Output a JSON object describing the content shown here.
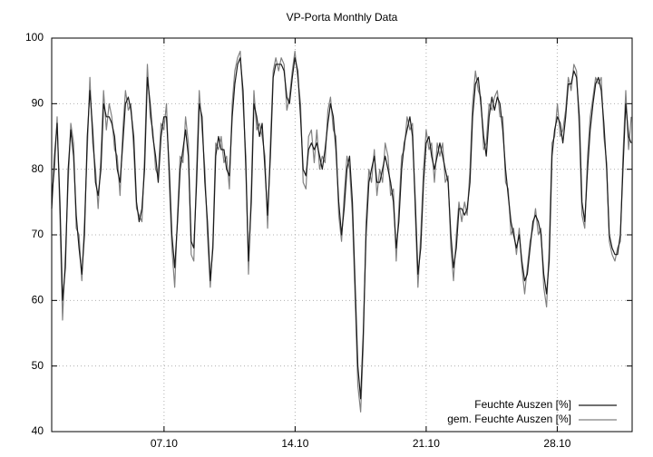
{
  "chart_data": {
    "type": "line",
    "title": "VP-Porta Monthly Data",
    "x": [
      1,
      1.15,
      1.29,
      1.44,
      1.58,
      1.73,
      1.88,
      2.02,
      2.17,
      2.31,
      2.46,
      2.61,
      2.75,
      2.9,
      3.04,
      3.19,
      3.34,
      3.48,
      3.63,
      3.77,
      3.92,
      4.07,
      4.21,
      4.36,
      4.5,
      4.65,
      4.8,
      4.94,
      5.09,
      5.23,
      5.38,
      5.53,
      5.67,
      5.82,
      5.96,
      6.11,
      6.26,
      6.4,
      6.55,
      6.69,
      6.84,
      6.99,
      7.13,
      7.28,
      7.42,
      7.57,
      7.72,
      7.86,
      8.01,
      8.15,
      8.3,
      8.45,
      8.59,
      8.74,
      8.88,
      9.03,
      9.18,
      9.32,
      9.47,
      9.61,
      9.76,
      9.91,
      10.05,
      10.2,
      10.34,
      10.49,
      10.64,
      10.78,
      10.93,
      11.07,
      11.22,
      11.37,
      11.51,
      11.66,
      11.8,
      11.95,
      12.1,
      12.24,
      12.39,
      12.53,
      12.68,
      12.83,
      12.97,
      13.12,
      13.26,
      13.41,
      13.56,
      13.7,
      13.85,
      13.99,
      14.14,
      14.29,
      14.43,
      14.58,
      14.72,
      14.87,
      15.02,
      15.16,
      15.31,
      15.45,
      15.6,
      15.75,
      15.89,
      16.04,
      16.18,
      16.33,
      16.48,
      16.62,
      16.77,
      16.91,
      17.06,
      17.21,
      17.35,
      17.5,
      17.64,
      17.79,
      17.94,
      18.08,
      18.23,
      18.37,
      18.52,
      18.67,
      18.81,
      18.96,
      19.1,
      19.25,
      19.4,
      19.54,
      19.69,
      19.83,
      19.98,
      20.13,
      20.27,
      20.42,
      20.56,
      20.71,
      20.86,
      21,
      21.15,
      21.29,
      21.44,
      21.59,
      21.73,
      21.88,
      22.02,
      22.17,
      22.32,
      22.46,
      22.61,
      22.75,
      22.9,
      23.05,
      23.19,
      23.34,
      23.48,
      23.63,
      23.78,
      23.92,
      24.07,
      24.21,
      24.36,
      24.51,
      24.65,
      24.8,
      24.94,
      25.09,
      25.24,
      25.38,
      25.53,
      25.67,
      25.82,
      25.97,
      26.11,
      26.26,
      26.4,
      26.55,
      26.7,
      26.84,
      26.99,
      27.13,
      27.28,
      27.43,
      27.57,
      27.72,
      27.86,
      28.01,
      28.16,
      28.3,
      28.45,
      28.59,
      28.74,
      28.89,
      29.03,
      29.18,
      29.32,
      29.47,
      29.62,
      29.76,
      29.91,
      30.05,
      30.2,
      30.35,
      30.49,
      30.64,
      30.78,
      30.93,
      31.08,
      31.22,
      31.37,
      31.51,
      31.66,
      31.81,
      31.95
    ],
    "series": [
      {
        "name": "gem. Feuchte Auszen [%]",
        "color": "#808080",
        "values": [
          76,
          80,
          88,
          73,
          57,
          67,
          78,
          87,
          84,
          71,
          70,
          63,
          72,
          83,
          94,
          84,
          80,
          74,
          82,
          92,
          86,
          90,
          88,
          83,
          82,
          76,
          86,
          92,
          89,
          90,
          83,
          74,
          73,
          72,
          82,
          96,
          88,
          86,
          80,
          79,
          87,
          86,
          90,
          78,
          68,
          62,
          73,
          82,
          81,
          88,
          84,
          67,
          66,
          80,
          92,
          86,
          80,
          70,
          62,
          69,
          84,
          83,
          85,
          81,
          82,
          77,
          90,
          95,
          97,
          98,
          90,
          82,
          64,
          77,
          92,
          86,
          87,
          85,
          82,
          71,
          84,
          95,
          97,
          95,
          97,
          96,
          89,
          91,
          95,
          98,
          94,
          90,
          78,
          77,
          85,
          86,
          81,
          86,
          80,
          82,
          81,
          89,
          91,
          86,
          85,
          73,
          69,
          76,
          82,
          80,
          73,
          60,
          47,
          43,
          53,
          72,
          80,
          78,
          83,
          76,
          80,
          78,
          84,
          82,
          76,
          77,
          66,
          74,
          82,
          83,
          88,
          86,
          87,
          73,
          62,
          70,
          80,
          86,
          83,
          84,
          78,
          84,
          82,
          84,
          78,
          79,
          68,
          63,
          70,
          75,
          72,
          75,
          73,
          80,
          90,
          95,
          92,
          91,
          83,
          84,
          90,
          89,
          91,
          92,
          88,
          88,
          78,
          77,
          70,
          71,
          67,
          71,
          65,
          61,
          65,
          69,
          71,
          74,
          70,
          71,
          62,
          59,
          68,
          84,
          85,
          90,
          85,
          86,
          89,
          94,
          92,
          96,
          95,
          86,
          73,
          71,
          82,
          88,
          91,
          94,
          93,
          94,
          85,
          81,
          69,
          67,
          66,
          68,
          69,
          82,
          92,
          83,
          88
        ]
      },
      {
        "name": "Feuchte Auszen [%]",
        "color": "#1a1a1a",
        "values": [
          74,
          82,
          87,
          75,
          60,
          65,
          80,
          86,
          82,
          73,
          68,
          64,
          70,
          85,
          92,
          86,
          78,
          76,
          80,
          90,
          88,
          88,
          87,
          85,
          80,
          78,
          84,
          90,
          91,
          89,
          85,
          75,
          72,
          74,
          80,
          94,
          90,
          85,
          82,
          78,
          85,
          88,
          88,
          80,
          70,
          65,
          72,
          80,
          83,
          86,
          82,
          69,
          68,
          78,
          90,
          88,
          78,
          72,
          63,
          68,
          82,
          85,
          83,
          83,
          80,
          79,
          88,
          93,
          96,
          97,
          92,
          80,
          66,
          75,
          90,
          88,
          85,
          87,
          80,
          73,
          82,
          94,
          96,
          96,
          96,
          95,
          91,
          90,
          94,
          97,
          95,
          88,
          80,
          79,
          83,
          84,
          83,
          84,
          82,
          80,
          83,
          87,
          90,
          88,
          83,
          75,
          70,
          74,
          80,
          82,
          75,
          62,
          50,
          45,
          55,
          70,
          78,
          80,
          82,
          78,
          78,
          80,
          82,
          80,
          78,
          75,
          68,
          72,
          80,
          84,
          86,
          88,
          85,
          75,
          64,
          68,
          78,
          84,
          85,
          82,
          80,
          82,
          84,
          82,
          80,
          78,
          70,
          65,
          68,
          74,
          74,
          73,
          74,
          78,
          88,
          93,
          94,
          90,
          85,
          82,
          88,
          91,
          89,
          91,
          90,
          86,
          80,
          76,
          72,
          70,
          68,
          70,
          66,
          63,
          64,
          68,
          72,
          73,
          72,
          70,
          64,
          61,
          66,
          82,
          86,
          88,
          87,
          84,
          88,
          93,
          93,
          95,
          94,
          88,
          75,
          72,
          80,
          86,
          90,
          93,
          94,
          92,
          87,
          80,
          70,
          68,
          67,
          67,
          70,
          80,
          90,
          85,
          84
        ]
      }
    ],
    "xlim": [
      1,
      32
    ],
    "xticks": [
      {
        "value": 7,
        "label": "07.10"
      },
      {
        "value": 14,
        "label": "14.10"
      },
      {
        "value": 21,
        "label": "21.10"
      },
      {
        "value": 28,
        "label": "28.10"
      }
    ],
    "ylim": [
      40,
      100
    ],
    "yticks": [
      40,
      50,
      60,
      70,
      80,
      90,
      100
    ],
    "grid": true,
    "legend": "lower right"
  }
}
